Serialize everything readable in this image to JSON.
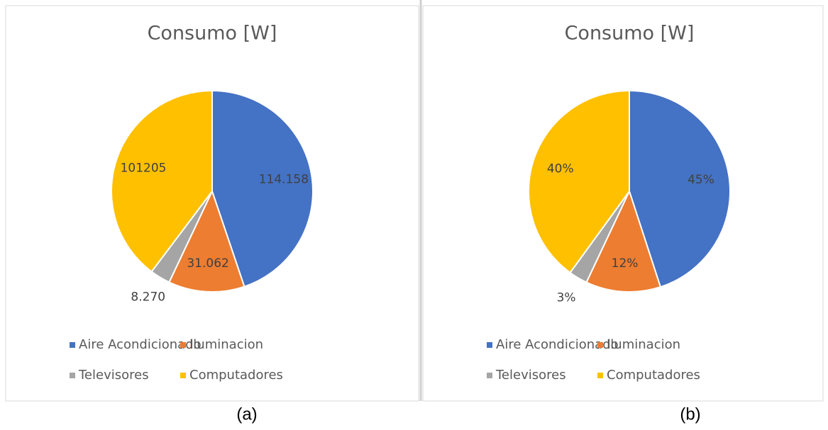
{
  "chart_data": [
    {
      "type": "pie",
      "title": "Consumo [W]",
      "caption": "(a)",
      "categories": [
        "Aire Acondicionado",
        "Iluminacion",
        "Televisores",
        "Computadores"
      ],
      "values": [
        114158,
        31062,
        8270,
        101205
      ],
      "value_labels": [
        "114.158",
        "31.062",
        "8.270",
        "101205"
      ],
      "colors": [
        "#4472c4",
        "#ed7d31",
        "#a5a5a5",
        "#ffc000"
      ],
      "legend": "bottom"
    },
    {
      "type": "pie",
      "title": "Consumo [W]",
      "caption": "(b)",
      "categories": [
        "Aire Acondicionado",
        "Iluminacion",
        "Televisores",
        "Computadores"
      ],
      "values": [
        45,
        12,
        3,
        40
      ],
      "value_labels": [
        "45%",
        "12%",
        "3%",
        "40%"
      ],
      "colors": [
        "#4472c4",
        "#ed7d31",
        "#a5a5a5",
        "#ffc000"
      ],
      "legend": "bottom"
    }
  ]
}
